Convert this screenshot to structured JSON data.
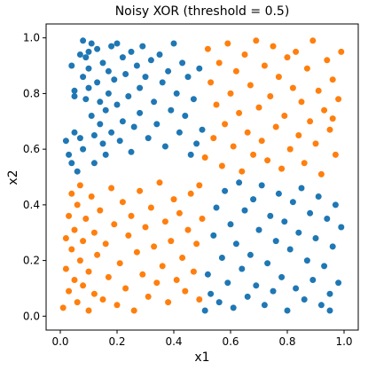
{
  "chart_data": {
    "type": "scatter",
    "title": "Noisy XOR (threshold = 0.5)",
    "xlabel": "x1",
    "ylabel": "x2",
    "xlim": [
      -0.05,
      1.05
    ],
    "ylim": [
      -0.05,
      1.05
    ],
    "xticks": [
      0.0,
      0.2,
      0.4,
      0.6,
      0.8,
      1.0
    ],
    "xtick_labels": [
      "0.0",
      "0.2",
      "0.4",
      "0.6",
      "0.8",
      "1.0"
    ],
    "yticks": [
      0.0,
      0.2,
      0.4,
      0.6,
      0.8,
      1.0
    ],
    "ytick_labels": [
      "0.0",
      "0.2",
      "0.4",
      "0.6",
      "0.8",
      "1.0"
    ],
    "grid": false,
    "legend": "none",
    "series": [
      {
        "color": "#1f77b4",
        "points": [
          [
            0.02,
            0.63
          ],
          [
            0.03,
            0.58
          ],
          [
            0.04,
            0.9
          ],
          [
            0.04,
            0.55
          ],
          [
            0.05,
            0.81
          ],
          [
            0.05,
            0.79
          ],
          [
            0.05,
            0.66
          ],
          [
            0.06,
            0.52
          ],
          [
            0.07,
            0.94
          ],
          [
            0.07,
            0.64
          ],
          [
            0.08,
            0.99
          ],
          [
            0.08,
            0.86
          ],
          [
            0.08,
            0.6
          ],
          [
            0.09,
            0.93
          ],
          [
            0.09,
            0.78
          ],
          [
            0.1,
            0.95
          ],
          [
            0.1,
            0.89
          ],
          [
            0.1,
            0.82
          ],
          [
            0.11,
            0.98
          ],
          [
            0.11,
            0.72
          ],
          [
            0.12,
            0.65
          ],
          [
            0.12,
            0.55
          ],
          [
            0.13,
            0.96
          ],
          [
            0.13,
            0.84
          ],
          [
            0.14,
            0.77
          ],
          [
            0.14,
            0.69
          ],
          [
            0.15,
            0.91
          ],
          [
            0.15,
            0.62
          ],
          [
            0.16,
            0.74
          ],
          [
            0.16,
            0.58
          ],
          [
            0.17,
            0.88
          ],
          [
            0.17,
            0.8
          ],
          [
            0.18,
            0.97
          ],
          [
            0.18,
            0.66
          ],
          [
            0.19,
            0.85
          ],
          [
            0.2,
            0.98
          ],
          [
            0.2,
            0.76
          ],
          [
            0.21,
            0.63
          ],
          [
            0.22,
            0.93
          ],
          [
            0.22,
            0.7
          ],
          [
            0.23,
            0.87
          ],
          [
            0.24,
            0.79
          ],
          [
            0.25,
            0.95
          ],
          [
            0.25,
            0.59
          ],
          [
            0.26,
            0.68
          ],
          [
            0.27,
            0.9
          ],
          [
            0.28,
            0.82
          ],
          [
            0.28,
            0.73
          ],
          [
            0.29,
            0.97
          ],
          [
            0.3,
            0.86
          ],
          [
            0.31,
            0.64
          ],
          [
            0.32,
            0.92
          ],
          [
            0.33,
            0.77
          ],
          [
            0.34,
            0.69
          ],
          [
            0.35,
            0.94
          ],
          [
            0.36,
            0.84
          ],
          [
            0.37,
            0.61
          ],
          [
            0.38,
            0.88
          ],
          [
            0.39,
            0.74
          ],
          [
            0.4,
            0.98
          ],
          [
            0.41,
            0.8
          ],
          [
            0.42,
            0.66
          ],
          [
            0.43,
            0.91
          ],
          [
            0.44,
            0.72
          ],
          [
            0.45,
            0.86
          ],
          [
            0.46,
            0.58
          ],
          [
            0.47,
            0.78
          ],
          [
            0.48,
            0.62
          ],
          [
            0.49,
            0.89
          ],
          [
            0.5,
            0.67
          ],
          [
            0.51,
            0.02
          ],
          [
            0.52,
            0.15
          ],
          [
            0.53,
            0.08
          ],
          [
            0.54,
            0.29
          ],
          [
            0.55,
            0.39
          ],
          [
            0.56,
            0.05
          ],
          [
            0.57,
            0.21
          ],
          [
            0.58,
            0.45
          ],
          [
            0.59,
            0.12
          ],
          [
            0.6,
            0.33
          ],
          [
            0.61,
            0.03
          ],
          [
            0.62,
            0.26
          ],
          [
            0.63,
            0.48
          ],
          [
            0.64,
            0.17
          ],
          [
            0.65,
            0.38
          ],
          [
            0.66,
            0.07
          ],
          [
            0.67,
            0.22
          ],
          [
            0.68,
            0.42
          ],
          [
            0.69,
            0.11
          ],
          [
            0.7,
            0.31
          ],
          [
            0.71,
            0.47
          ],
          [
            0.72,
            0.04
          ],
          [
            0.73,
            0.19
          ],
          [
            0.74,
            0.36
          ],
          [
            0.75,
            0.09
          ],
          [
            0.76,
            0.27
          ],
          [
            0.77,
            0.44
          ],
          [
            0.78,
            0.14
          ],
          [
            0.79,
            0.34
          ],
          [
            0.8,
            0.02
          ],
          [
            0.81,
            0.24
          ],
          [
            0.82,
            0.41
          ],
          [
            0.83,
            0.1
          ],
          [
            0.84,
            0.3
          ],
          [
            0.85,
            0.46
          ],
          [
            0.86,
            0.06
          ],
          [
            0.87,
            0.2
          ],
          [
            0.88,
            0.37
          ],
          [
            0.89,
            0.13
          ],
          [
            0.9,
            0.28
          ],
          [
            0.91,
            0.43
          ],
          [
            0.92,
            0.04
          ],
          [
            0.93,
            0.18
          ],
          [
            0.94,
            0.35
          ],
          [
            0.95,
            0.08
          ],
          [
            0.96,
            0.25
          ],
          [
            0.97,
            0.4
          ],
          [
            0.98,
            0.12
          ],
          [
            0.99,
            0.32
          ],
          [
            0.95,
            0.02
          ]
        ]
      },
      {
        "color": "#ff7f0e",
        "points": [
          [
            0.01,
            0.03
          ],
          [
            0.02,
            0.17
          ],
          [
            0.02,
            0.28
          ],
          [
            0.03,
            0.09
          ],
          [
            0.03,
            0.36
          ],
          [
            0.04,
            0.24
          ],
          [
            0.04,
            0.44
          ],
          [
            0.05,
            0.13
          ],
          [
            0.05,
            0.31
          ],
          [
            0.06,
            0.05
          ],
          [
            0.06,
            0.4
          ],
          [
            0.07,
            0.2
          ],
          [
            0.07,
            0.47
          ],
          [
            0.08,
            0.11
          ],
          [
            0.08,
            0.27
          ],
          [
            0.09,
            0.35
          ],
          [
            0.1,
            0.02
          ],
          [
            0.1,
            0.16
          ],
          [
            0.11,
            0.43
          ],
          [
            0.12,
            0.08
          ],
          [
            0.12,
            0.3
          ],
          [
            0.13,
            0.22
          ],
          [
            0.14,
            0.38
          ],
          [
            0.15,
            0.06
          ],
          [
            0.16,
            0.26
          ],
          [
            0.17,
            0.14
          ],
          [
            0.18,
            0.46
          ],
          [
            0.19,
            0.33
          ],
          [
            0.2,
            0.04
          ],
          [
            0.21,
            0.19
          ],
          [
            0.22,
            0.41
          ],
          [
            0.23,
            0.1
          ],
          [
            0.24,
            0.29
          ],
          [
            0.25,
            0.36
          ],
          [
            0.26,
            0.02
          ],
          [
            0.27,
            0.23
          ],
          [
            0.28,
            0.45
          ],
          [
            0.29,
            0.15
          ],
          [
            0.3,
            0.32
          ],
          [
            0.31,
            0.07
          ],
          [
            0.32,
            0.39
          ],
          [
            0.33,
            0.25
          ],
          [
            0.34,
            0.12
          ],
          [
            0.35,
            0.48
          ],
          [
            0.36,
            0.18
          ],
          [
            0.37,
            0.34
          ],
          [
            0.38,
            0.05
          ],
          [
            0.39,
            0.27
          ],
          [
            0.4,
            0.42
          ],
          [
            0.41,
            0.13
          ],
          [
            0.42,
            0.37
          ],
          [
            0.43,
            0.21
          ],
          [
            0.44,
            0.09
          ],
          [
            0.45,
            0.31
          ],
          [
            0.46,
            0.44
          ],
          [
            0.47,
            0.16
          ],
          [
            0.48,
            0.26
          ],
          [
            0.49,
            0.06
          ],
          [
            0.5,
            0.35
          ],
          [
            0.49,
            0.47
          ],
          [
            0.51,
            0.57
          ],
          [
            0.52,
            0.96
          ],
          [
            0.53,
            0.84
          ],
          [
            0.54,
            0.64
          ],
          [
            0.55,
            0.76
          ],
          [
            0.56,
            0.91
          ],
          [
            0.57,
            0.54
          ],
          [
            0.58,
            0.69
          ],
          [
            0.59,
            0.98
          ],
          [
            0.6,
            0.8
          ],
          [
            0.61,
            0.61
          ],
          [
            0.62,
            0.88
          ],
          [
            0.63,
            0.73
          ],
          [
            0.64,
            0.52
          ],
          [
            0.65,
            0.94
          ],
          [
            0.66,
            0.66
          ],
          [
            0.67,
            0.83
          ],
          [
            0.68,
            0.58
          ],
          [
            0.69,
            0.99
          ],
          [
            0.7,
            0.75
          ],
          [
            0.71,
            0.63
          ],
          [
            0.72,
            0.9
          ],
          [
            0.73,
            0.56
          ],
          [
            0.74,
            0.79
          ],
          [
            0.75,
            0.97
          ],
          [
            0.76,
            0.68
          ],
          [
            0.77,
            0.86
          ],
          [
            0.78,
            0.53
          ],
          [
            0.79,
            0.72
          ],
          [
            0.8,
            0.93
          ],
          [
            0.81,
            0.6
          ],
          [
            0.82,
            0.82
          ],
          [
            0.83,
            0.95
          ],
          [
            0.84,
            0.65
          ],
          [
            0.85,
            0.77
          ],
          [
            0.86,
            0.55
          ],
          [
            0.87,
            0.89
          ],
          [
            0.88,
            0.7
          ],
          [
            0.89,
            0.99
          ],
          [
            0.9,
            0.62
          ],
          [
            0.91,
            0.81
          ],
          [
            0.92,
            0.51
          ],
          [
            0.93,
            0.74
          ],
          [
            0.94,
            0.92
          ],
          [
            0.95,
            0.67
          ],
          [
            0.96,
            0.85
          ],
          [
            0.97,
            0.58
          ],
          [
            0.98,
            0.78
          ],
          [
            0.99,
            0.95
          ],
          [
            0.96,
            0.71
          ]
        ]
      }
    ]
  }
}
